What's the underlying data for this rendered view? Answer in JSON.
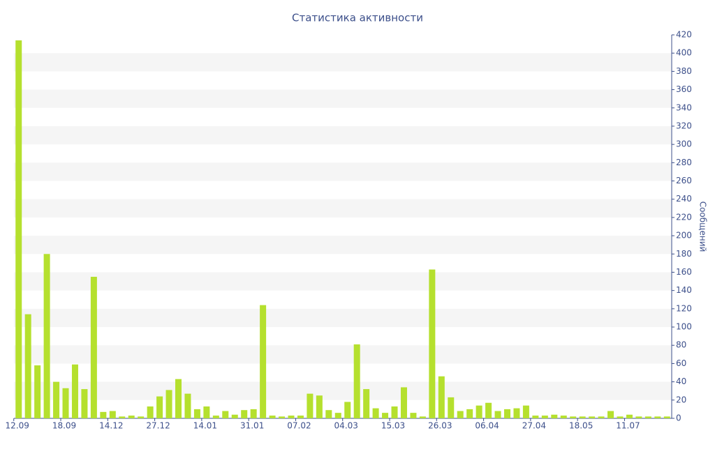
{
  "chart_data": {
    "type": "bar",
    "title": "Статистика активности",
    "y_axis_label": "Сообщений",
    "categories": [
      "12.09",
      null,
      null,
      null,
      null,
      "18.09",
      null,
      null,
      null,
      null,
      "14.12",
      null,
      null,
      null,
      null,
      "27.12",
      null,
      null,
      null,
      null,
      "14.01",
      null,
      null,
      null,
      null,
      "31.01",
      null,
      null,
      null,
      null,
      "07.02",
      null,
      null,
      null,
      null,
      "04.03",
      null,
      null,
      null,
      null,
      "15.03",
      null,
      null,
      null,
      null,
      "26.03",
      null,
      null,
      null,
      null,
      "06.04",
      null,
      null,
      null,
      null,
      "27.04",
      null,
      null,
      null,
      null,
      "18.05",
      null,
      null,
      null,
      null,
      "11.07",
      null,
      null,
      null,
      null
    ],
    "values": [
      414,
      114,
      58,
      180,
      40,
      33,
      59,
      32,
      155,
      7,
      8,
      2,
      3,
      2,
      13,
      24,
      31,
      43,
      27,
      10,
      13,
      3,
      8,
      4,
      9,
      10,
      124,
      3,
      2,
      3,
      3,
      27,
      25,
      9,
      6,
      18,
      81,
      32,
      11,
      6,
      13,
      34,
      6,
      2,
      163,
      46,
      23,
      8,
      10,
      14,
      17,
      8,
      10,
      11,
      14,
      3,
      3,
      4,
      3,
      2,
      2,
      2,
      2,
      8,
      2,
      4,
      2,
      2,
      2,
      2
    ],
    "color": "#b5e02e",
    "ylim": [
      0,
      420
    ],
    "yticks": [
      0,
      20,
      40,
      60,
      80,
      100,
      120,
      140,
      160,
      180,
      200,
      220,
      240,
      260,
      280,
      300,
      320,
      340,
      360,
      380,
      400,
      420
    ],
    "y_axis_side": "right",
    "grid": "stripes"
  }
}
